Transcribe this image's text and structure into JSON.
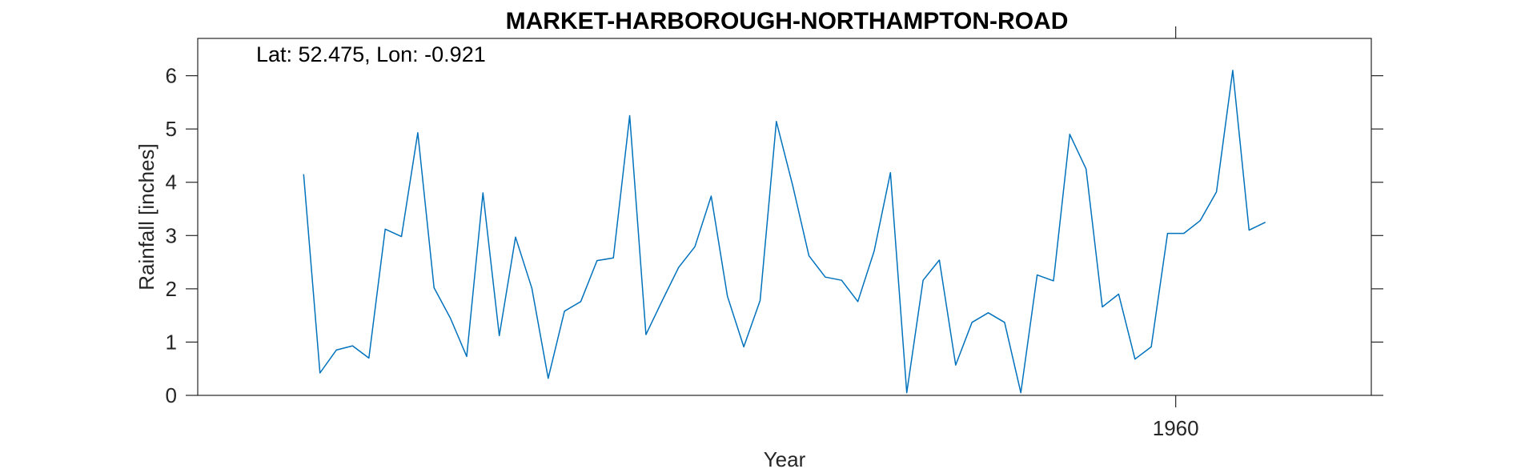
{
  "chart_data": {
    "type": "line",
    "title": "MARKET-HARBOROUGH-NORTHAMPTON-ROAD",
    "annotation": "Lat: 52.475, Lon: -0.921",
    "xlabel": "Year",
    "ylabel": "Rainfall [inches]",
    "xlim": [
      1900,
      1972
    ],
    "ylim": [
      0,
      6.7
    ],
    "yticks": [
      0,
      1,
      2,
      3,
      4,
      5,
      6
    ],
    "xticks": [
      1960
    ],
    "grid": false,
    "line_color": "#0072BD",
    "series": [
      {
        "x": [
          1906.5,
          1907.5,
          1908.5,
          1909.5,
          1910.5,
          1911.5,
          1912.5,
          1913.5,
          1914.5,
          1915.5,
          1916.5,
          1917.5,
          1918.5,
          1919.5,
          1920.5,
          1921.5,
          1922.5,
          1923.5,
          1924.5,
          1925.5,
          1926.5,
          1927.5,
          1928.5,
          1929.5,
          1930.5,
          1931.5,
          1932.5,
          1933.5,
          1934.5,
          1935.5,
          1936.5,
          1937.5,
          1938.5,
          1939.5,
          1940.5,
          1941.5,
          1942.5,
          1943.5,
          1944.5,
          1945.5,
          1946.5,
          1947.5,
          1948.5,
          1949.5,
          1950.5,
          1951.5,
          1952.5,
          1953.5,
          1954.5,
          1955.5,
          1956.5,
          1957.5,
          1958.5,
          1959.5,
          1960.5,
          1961.5,
          1962.5,
          1963.5,
          1964.5,
          1965.5
        ],
        "values": [
          4.15,
          0.42,
          0.85,
          0.93,
          0.7,
          3.12,
          2.98,
          4.93,
          2.02,
          1.45,
          0.73,
          3.8,
          1.12,
          2.97,
          2.01,
          0.32,
          1.58,
          1.76,
          2.53,
          2.58,
          5.25,
          1.14,
          1.78,
          2.4,
          2.79,
          3.74,
          1.86,
          0.91,
          1.78,
          5.14,
          3.94,
          2.62,
          2.22,
          2.16,
          1.76,
          2.71,
          4.18,
          0.05,
          2.16,
          2.54,
          0.57,
          1.37,
          1.55,
          1.37,
          0.05,
          2.26,
          2.15,
          4.9,
          4.25,
          1.66,
          1.9,
          0.68,
          0.91,
          3.04,
          3.04,
          3.28,
          3.82,
          6.1,
          3.1,
          3.25
        ]
      }
    ]
  }
}
